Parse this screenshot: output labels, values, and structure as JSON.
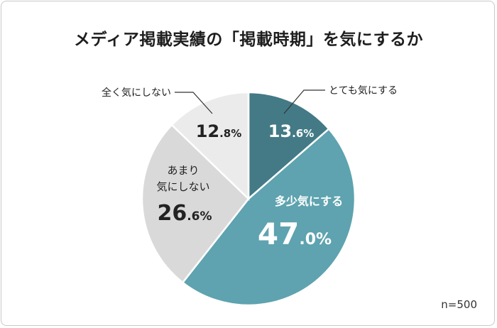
{
  "title": "メディア掲載実績の「掲載時期」を気にするか",
  "sample_size": "n=500",
  "chart_data": {
    "type": "pie",
    "title": "メディア掲載実績の「掲載時期」を気にするか",
    "slices": [
      {
        "label": "とても気にする",
        "value": 13.6,
        "value_text": "13.6%",
        "color": "#437a86"
      },
      {
        "label": "多少気にする",
        "value": 47.0,
        "value_text": "47.0%",
        "color": "#5ea3af"
      },
      {
        "label": "あまり気にしない",
        "value": 26.6,
        "value_text": "26.6%",
        "color": "#d9d9d9"
      },
      {
        "label": "全く気にしない",
        "value": 12.8,
        "value_text": "12.8%",
        "color": "#ebebeb"
      }
    ],
    "start": "12 o'clock",
    "direction": "clockwise"
  },
  "labels": {
    "slice0_outside": "とても気にする",
    "slice1_inside": "多少気にする",
    "slice2_inside_line1": "あまり",
    "slice2_inside_line2": "気にしない",
    "slice3_outside": "全く気にしない"
  },
  "values": {
    "slice0_big": "13",
    "slice0_small": ".6%",
    "slice1_big": "47",
    "slice1_small": ".0%",
    "slice2_big": "26",
    "slice2_small": ".6%",
    "slice3_big": "12",
    "slice3_small": ".8%"
  }
}
